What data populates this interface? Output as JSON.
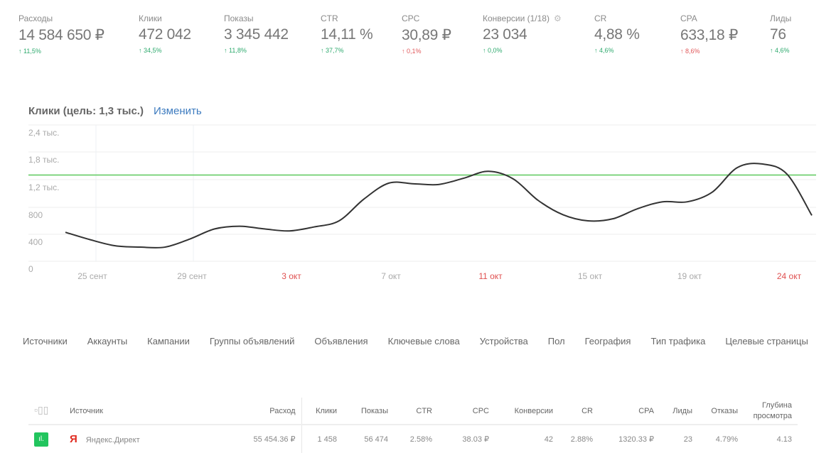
{
  "kpis": [
    {
      "label": "Расходы",
      "value": "14 584 650 ₽",
      "delta": "↑ 11,5%",
      "trend": "up"
    },
    {
      "label": "Клики",
      "value": "472 042",
      "delta": "↑ 34,5%",
      "trend": "up"
    },
    {
      "label": "Показы",
      "value": "3 345 442",
      "delta": "↑ 11,8%",
      "trend": "up"
    },
    {
      "label": "CTR",
      "value": "14,11 %",
      "delta": "↑ 37,7%",
      "trend": "up"
    },
    {
      "label": "CPC",
      "value": "30,89 ₽",
      "delta": "↑ 0,1%",
      "trend": "down"
    },
    {
      "label": "Конверсии (1/18)",
      "value": "23 034",
      "delta": "↑ 0,0%",
      "trend": "up",
      "icon": "gear-icon"
    },
    {
      "label": "CR",
      "value": "4,88 %",
      "delta": "↑ 4,6%",
      "trend": "up"
    },
    {
      "label": "CPA",
      "value": "633,18 ₽",
      "delta": "↑ 8,6%",
      "trend": "down"
    },
    {
      "label": "Лиды",
      "value": "76",
      "delta": "↑ 4,6%",
      "trend": "up"
    }
  ],
  "chart": {
    "title": "Клики (цель: 1,3 тыс.)",
    "change_link": "Изменить"
  },
  "chart_data": {
    "type": "line",
    "y_tick_labels": [
      "0",
      "400",
      "800",
      "1,2 тыс.",
      "1,8 тыс.",
      "2,4 тыс."
    ],
    "y_tick_values": [
      0,
      400,
      800,
      1200,
      1800,
      2400
    ],
    "goal": 1300,
    "goal_color": "#5cc85c",
    "line_color": "#333333",
    "values": [
      430,
      320,
      230,
      210,
      210,
      330,
      480,
      520,
      480,
      450,
      510,
      600,
      920,
      1150,
      1140,
      1130,
      1230,
      1380,
      1215,
      900,
      690,
      600,
      630,
      780,
      880,
      880,
      1020,
      1460,
      1540,
      1320,
      680
    ],
    "x_tick_labels": [
      {
        "label": "25 сент",
        "index": 1,
        "holiday": false
      },
      {
        "label": "29 сент",
        "index": 5,
        "holiday": false
      },
      {
        "label": "3 окт",
        "index": 9,
        "holiday": true
      },
      {
        "label": "7 окт",
        "index": 13,
        "holiday": false
      },
      {
        "label": "11 окт",
        "index": 17,
        "holiday": true
      },
      {
        "label": "15 окт",
        "index": 21,
        "holiday": false
      },
      {
        "label": "19 окт",
        "index": 25,
        "holiday": false
      },
      {
        "label": "24 окт",
        "index": 29,
        "holiday": true
      }
    ],
    "grid": true,
    "legend": "none"
  },
  "tabs": [
    "Источники",
    "Аккаунты",
    "Кампании",
    "Группы объявлений",
    "Объявления",
    "Ключевые слова",
    "Устройства",
    "Пол",
    "География",
    "Тип трафика",
    "Целевые страницы"
  ],
  "table": {
    "headers": {
      "source": "Источник",
      "spend": "Расход",
      "clicks": "Клики",
      "shows": "Показы",
      "ctr": "CTR",
      "cpc": "CPC",
      "conv": "Конверсии",
      "cr": "CR",
      "cpa": "CPA",
      "leads": "Лиды",
      "bounce": "Отказы",
      "depth": "Глубина просмотра"
    },
    "rows": [
      {
        "logo": "Я",
        "source": "Яндекс.Директ",
        "spend": "55 454.36 ₽",
        "clicks": "1 458",
        "shows": "56 474",
        "ctr": "2.58%",
        "cpc": "38.03 ₽",
        "conv": "42",
        "cr": "2.88%",
        "cpa": "1320.33 ₽",
        "leads": "23",
        "bounce": "4.79%",
        "depth": "4.13"
      }
    ]
  }
}
